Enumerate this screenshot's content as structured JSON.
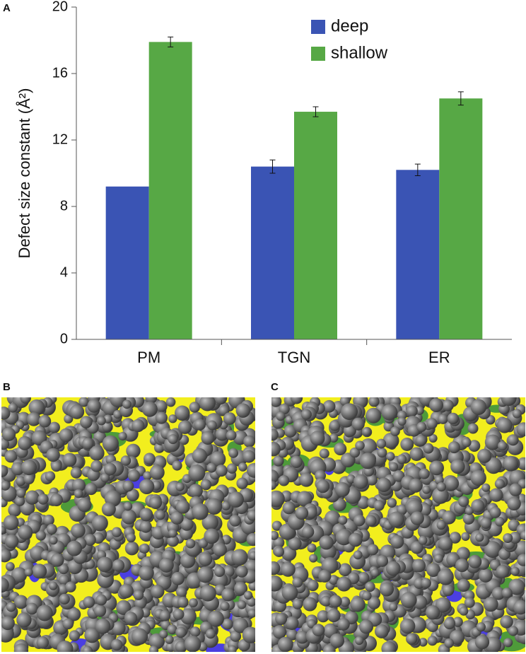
{
  "panel_labels": [
    "A",
    "B",
    "C"
  ],
  "chart_data": {
    "type": "bar",
    "ylabel": "Defect size constant (Å²)",
    "categories": [
      "PM",
      "TGN",
      "ER"
    ],
    "series": [
      {
        "name": "deep",
        "color": "#3a54b4",
        "values": [
          9.2,
          10.4,
          10.2
        ],
        "errors": [
          null,
          0.4,
          0.35
        ]
      },
      {
        "name": "shallow",
        "color": "#57a845",
        "values": [
          17.9,
          13.7,
          14.5
        ],
        "errors": [
          0.3,
          0.3,
          0.4
        ]
      }
    ],
    "ylim": [
      0,
      20
    ],
    "yticks": [
      0,
      4,
      8,
      12,
      16,
      20
    ],
    "grid": false,
    "legend": "top-right"
  }
}
